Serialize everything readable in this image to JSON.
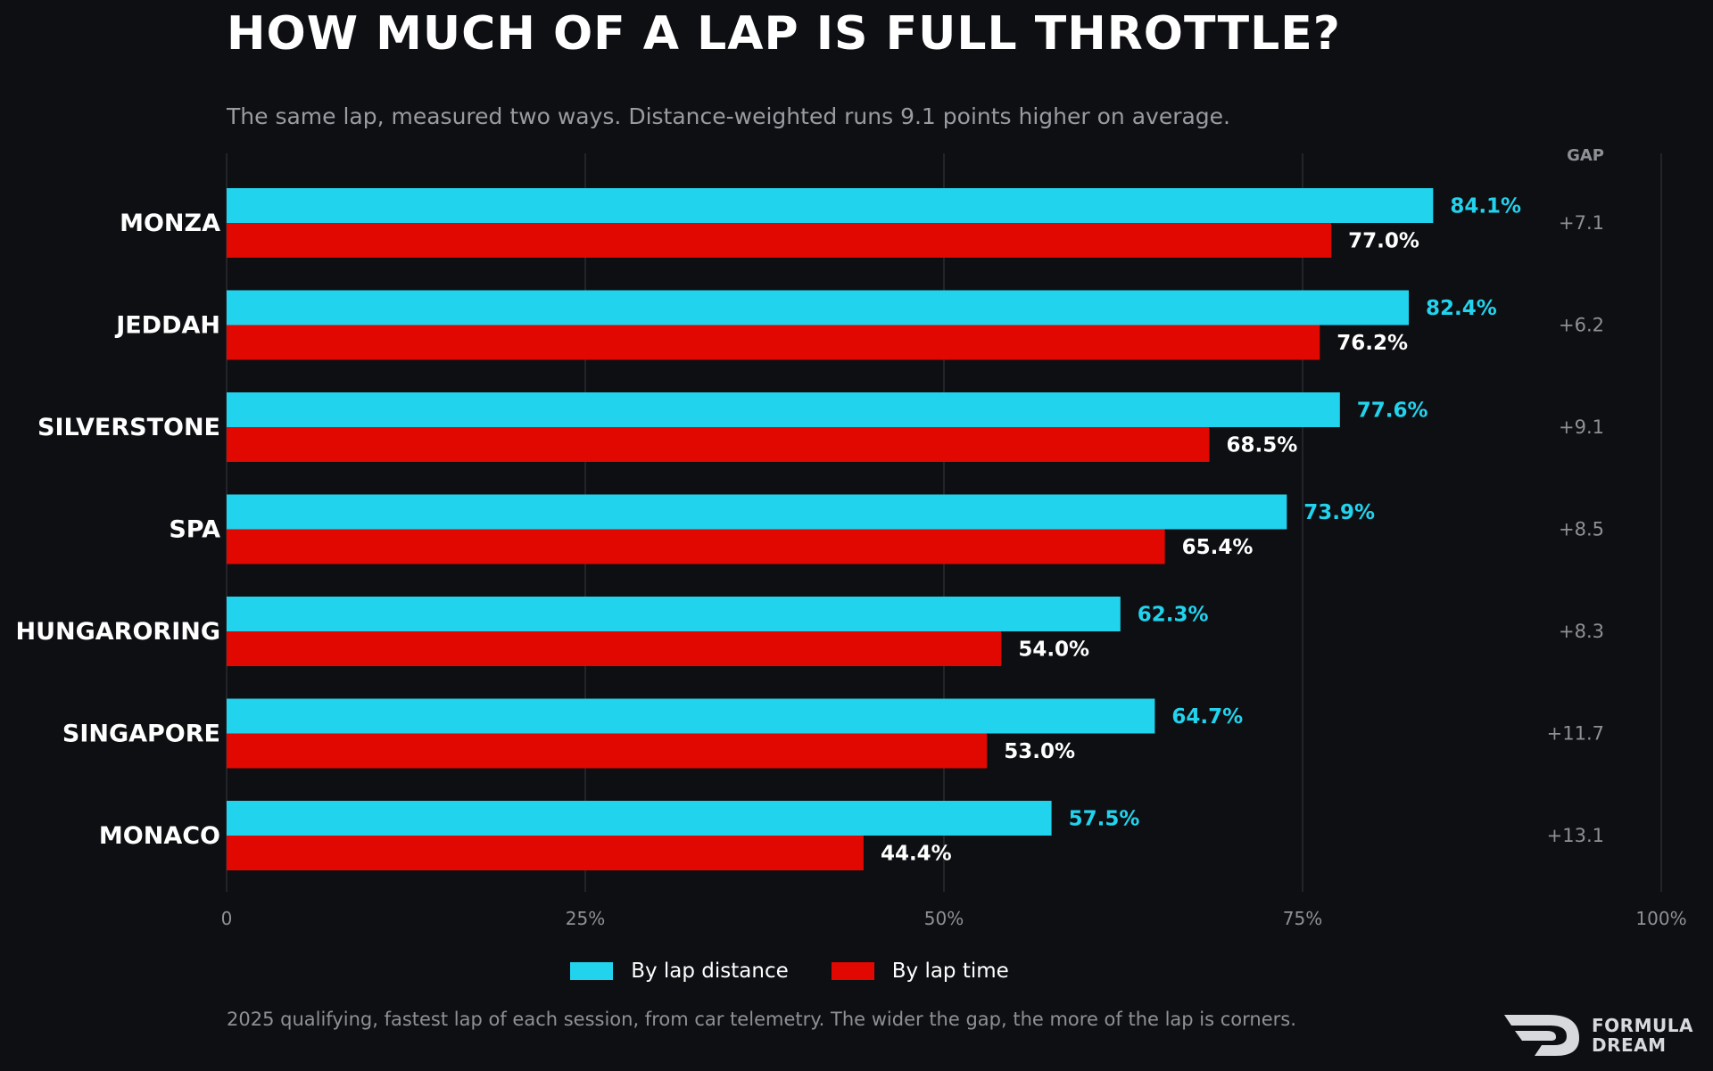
{
  "title": "HOW MUCH OF A LAP IS FULL THROTTLE?",
  "subtitle": "The same lap, measured two ways. Distance-weighted runs 9.1 points higher on average.",
  "footnote": "2025 qualifying, fastest lap of each session, from car telemetry. The wider the gap, the more of the lap is corners.",
  "logo": {
    "line1": "FORMULA",
    "line2": "DREAM"
  },
  "colors": {
    "distance": "#22d3ee",
    "time": "#e00800",
    "background": "#0e0f13",
    "grid": "#2a2c31",
    "muted": "#8f9096"
  },
  "chart_data": {
    "type": "bar",
    "orientation": "horizontal",
    "categories": [
      "MONZA",
      "JEDDAH",
      "SILVERSTONE",
      "SPA",
      "HUNGARORING",
      "SINGAPORE",
      "MONACO"
    ],
    "series": [
      {
        "name": "By lap distance",
        "values": [
          84.1,
          82.4,
          77.6,
          73.9,
          62.3,
          64.7,
          57.5
        ],
        "labels": [
          "84.1%",
          "82.4%",
          "77.6%",
          "73.9%",
          "62.3%",
          "64.7%",
          "57.5%"
        ]
      },
      {
        "name": "By lap time",
        "values": [
          77.0,
          76.2,
          68.5,
          65.4,
          54.0,
          53.0,
          44.4
        ],
        "labels": [
          "77.0%",
          "76.2%",
          "68.5%",
          "65.4%",
          "54.0%",
          "53.0%",
          "44.4%"
        ]
      }
    ],
    "gap": {
      "header": "GAP",
      "values": [
        "+7.1",
        "+6.2",
        "+9.1",
        "+8.5",
        "+8.3",
        "+11.7",
        "+13.1"
      ]
    },
    "xlim": [
      0,
      100
    ],
    "xticks": [
      0,
      25,
      50,
      75,
      100
    ],
    "xtick_labels": [
      "0",
      "25%",
      "50%",
      "75%",
      "100%"
    ],
    "grid": true,
    "legend_position": "bottom-center"
  }
}
